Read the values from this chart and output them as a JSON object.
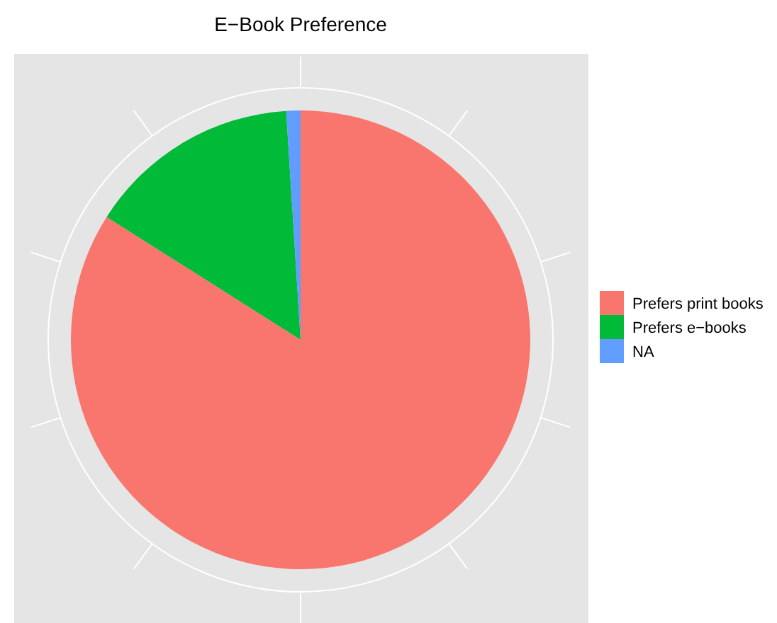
{
  "chart_data": {
    "type": "pie",
    "title": "E−Book Preference",
    "categories": [
      "Prefers print books",
      "Prefers e−books",
      "NA"
    ],
    "values": [
      84,
      15,
      1
    ],
    "colors": [
      "#f8766d",
      "#00ba38",
      "#619cff"
    ],
    "grid": true,
    "legend": "right"
  }
}
